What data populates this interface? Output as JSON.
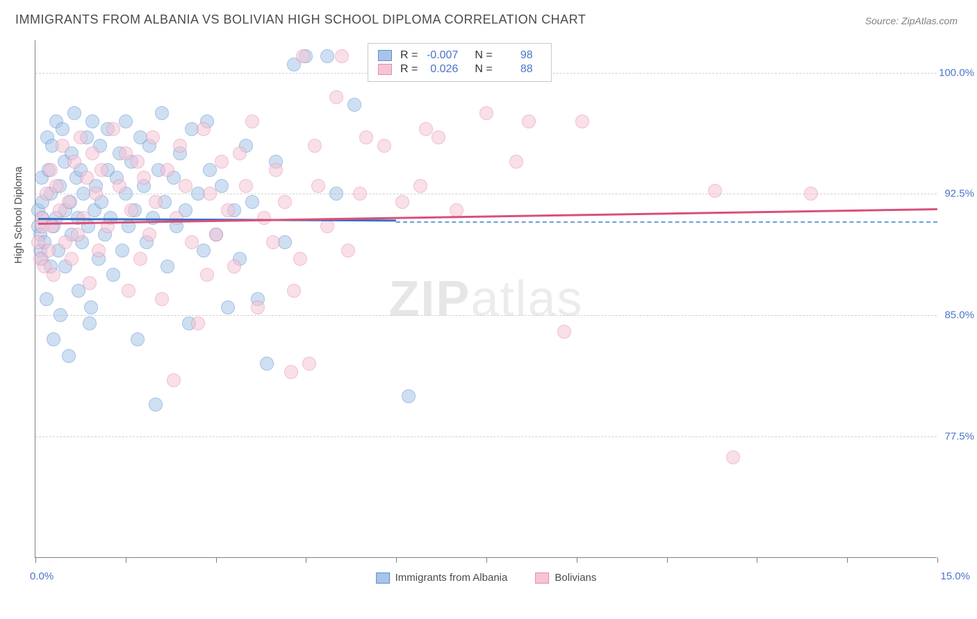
{
  "title": "IMMIGRANTS FROM ALBANIA VS BOLIVIAN HIGH SCHOOL DIPLOMA CORRELATION CHART",
  "source": "Source: ZipAtlas.com",
  "watermark_bold": "ZIP",
  "watermark_light": "atlas",
  "chart": {
    "type": "scatter",
    "xlim": [
      0,
      15
    ],
    "ylim": [
      70,
      102
    ],
    "x_axis_label_left": "0.0%",
    "x_axis_label_right": "15.0%",
    "y_axis_title": "High School Diploma",
    "y_ticks": [
      {
        "v": 77.5,
        "label": "77.5%"
      },
      {
        "v": 85.0,
        "label": "85.0%"
      },
      {
        "v": 92.5,
        "label": "92.5%"
      },
      {
        "v": 100.0,
        "label": "100.0%"
      }
    ],
    "x_tick_positions": [
      0,
      1.5,
      3.0,
      4.5,
      6.0,
      7.5,
      9.0,
      10.5,
      12.0,
      13.5,
      15.0
    ],
    "grid_color": "#d0d0d0",
    "background_color": "#ffffff",
    "marker_radius": 10,
    "marker_opacity": 0.55,
    "series": [
      {
        "name": "Immigrants from Albania",
        "fill": "#a8c5e8",
        "stroke": "#5a8fd0",
        "R": "-0.007",
        "N": "98",
        "trend": {
          "x1": 0.05,
          "y1": 91.0,
          "x2": 6.0,
          "y2": 90.9,
          "color": "#3a6fc0"
        },
        "dashed_ext": {
          "x1": 6.0,
          "x2": 15.0,
          "y": 90.8,
          "color": "#6a9fd8"
        },
        "points": [
          [
            0.05,
            90.5
          ],
          [
            0.05,
            91.5
          ],
          [
            0.08,
            89.0
          ],
          [
            0.08,
            90.0
          ],
          [
            0.1,
            93.5
          ],
          [
            0.1,
            88.5
          ],
          [
            0.12,
            92.0
          ],
          [
            0.12,
            91.0
          ],
          [
            0.15,
            89.5
          ],
          [
            0.18,
            86.0
          ],
          [
            0.2,
            96.0
          ],
          [
            0.22,
            94.0
          ],
          [
            0.25,
            92.5
          ],
          [
            0.25,
            88.0
          ],
          [
            0.28,
            95.5
          ],
          [
            0.3,
            83.5
          ],
          [
            0.3,
            90.5
          ],
          [
            0.35,
            97.0
          ],
          [
            0.35,
            91.0
          ],
          [
            0.38,
            89.0
          ],
          [
            0.4,
            93.0
          ],
          [
            0.42,
            85.0
          ],
          [
            0.45,
            96.5
          ],
          [
            0.48,
            94.5
          ],
          [
            0.5,
            91.5
          ],
          [
            0.5,
            88.0
          ],
          [
            0.55,
            82.5
          ],
          [
            0.58,
            92.0
          ],
          [
            0.6,
            95.0
          ],
          [
            0.6,
            90.0
          ],
          [
            0.65,
            97.5
          ],
          [
            0.68,
            93.5
          ],
          [
            0.7,
            91.0
          ],
          [
            0.72,
            86.5
          ],
          [
            0.75,
            94.0
          ],
          [
            0.78,
            89.5
          ],
          [
            0.8,
            92.5
          ],
          [
            0.85,
            96.0
          ],
          [
            0.88,
            90.5
          ],
          [
            0.9,
            84.5
          ],
          [
            0.92,
            85.5
          ],
          [
            0.95,
            97.0
          ],
          [
            0.98,
            91.5
          ],
          [
            1.0,
            93.0
          ],
          [
            1.05,
            88.5
          ],
          [
            1.08,
            95.5
          ],
          [
            1.1,
            92.0
          ],
          [
            1.15,
            90.0
          ],
          [
            1.2,
            96.5
          ],
          [
            1.2,
            94.0
          ],
          [
            1.25,
            91.0
          ],
          [
            1.3,
            87.5
          ],
          [
            1.35,
            93.5
          ],
          [
            1.4,
            95.0
          ],
          [
            1.45,
            89.0
          ],
          [
            1.5,
            92.5
          ],
          [
            1.5,
            97.0
          ],
          [
            1.55,
            90.5
          ],
          [
            1.6,
            94.5
          ],
          [
            1.65,
            91.5
          ],
          [
            1.7,
            83.5
          ],
          [
            1.75,
            96.0
          ],
          [
            1.8,
            93.0
          ],
          [
            1.85,
            89.5
          ],
          [
            1.9,
            95.5
          ],
          [
            1.95,
            91.0
          ],
          [
            2.0,
            79.5
          ],
          [
            2.05,
            94.0
          ],
          [
            2.1,
            97.5
          ],
          [
            2.15,
            92.0
          ],
          [
            2.2,
            88.0
          ],
          [
            2.3,
            93.5
          ],
          [
            2.35,
            90.5
          ],
          [
            2.4,
            95.0
          ],
          [
            2.5,
            91.5
          ],
          [
            2.55,
            84.5
          ],
          [
            2.6,
            96.5
          ],
          [
            2.7,
            92.5
          ],
          [
            2.8,
            89.0
          ],
          [
            2.85,
            97.0
          ],
          [
            2.9,
            94.0
          ],
          [
            3.0,
            90.0
          ],
          [
            3.1,
            93.0
          ],
          [
            3.2,
            85.5
          ],
          [
            3.3,
            91.5
          ],
          [
            3.4,
            88.5
          ],
          [
            3.5,
            95.5
          ],
          [
            3.6,
            92.0
          ],
          [
            3.7,
            86.0
          ],
          [
            3.85,
            82.0
          ],
          [
            4.0,
            94.5
          ],
          [
            4.15,
            89.5
          ],
          [
            4.3,
            100.5
          ],
          [
            4.5,
            101.0
          ],
          [
            4.85,
            101.0
          ],
          [
            5.0,
            92.5
          ],
          [
            5.3,
            98.0
          ],
          [
            6.2,
            80.0
          ]
        ]
      },
      {
        "name": "Bolivians",
        "fill": "#f5c5d5",
        "stroke": "#e88aa8",
        "R": "0.026",
        "N": "88",
        "trend": {
          "x1": 0.05,
          "y1": 90.7,
          "x2": 15.0,
          "y2": 91.6,
          "color": "#d8507a"
        },
        "points": [
          [
            0.05,
            89.5
          ],
          [
            0.08,
            88.5
          ],
          [
            0.1,
            91.0
          ],
          [
            0.12,
            90.5
          ],
          [
            0.15,
            88.0
          ],
          [
            0.18,
            92.5
          ],
          [
            0.22,
            89.0
          ],
          [
            0.25,
            94.0
          ],
          [
            0.28,
            90.5
          ],
          [
            0.3,
            87.5
          ],
          [
            0.35,
            93.0
          ],
          [
            0.4,
            91.5
          ],
          [
            0.45,
            95.5
          ],
          [
            0.5,
            89.5
          ],
          [
            0.55,
            92.0
          ],
          [
            0.6,
            88.5
          ],
          [
            0.65,
            94.5
          ],
          [
            0.7,
            90.0
          ],
          [
            0.75,
            96.0
          ],
          [
            0.8,
            91.0
          ],
          [
            0.85,
            93.5
          ],
          [
            0.9,
            87.0
          ],
          [
            0.95,
            95.0
          ],
          [
            1.0,
            92.5
          ],
          [
            1.05,
            89.0
          ],
          [
            1.1,
            94.0
          ],
          [
            1.2,
            90.5
          ],
          [
            1.3,
            96.5
          ],
          [
            1.4,
            93.0
          ],
          [
            1.5,
            95.0
          ],
          [
            1.55,
            86.5
          ],
          [
            1.6,
            91.5
          ],
          [
            1.7,
            94.5
          ],
          [
            1.75,
            88.5
          ],
          [
            1.8,
            93.5
          ],
          [
            1.9,
            90.0
          ],
          [
            1.95,
            96.0
          ],
          [
            2.0,
            92.0
          ],
          [
            2.1,
            86.0
          ],
          [
            2.2,
            94.0
          ],
          [
            2.3,
            81.0
          ],
          [
            2.35,
            91.0
          ],
          [
            2.4,
            95.5
          ],
          [
            2.5,
            93.0
          ],
          [
            2.6,
            89.5
          ],
          [
            2.7,
            84.5
          ],
          [
            2.8,
            96.5
          ],
          [
            2.85,
            87.5
          ],
          [
            2.9,
            92.5
          ],
          [
            3.0,
            90.0
          ],
          [
            3.1,
            94.5
          ],
          [
            3.2,
            91.5
          ],
          [
            3.3,
            88.0
          ],
          [
            3.4,
            95.0
          ],
          [
            3.5,
            93.0
          ],
          [
            3.6,
            97.0
          ],
          [
            3.7,
            85.5
          ],
          [
            3.8,
            91.0
          ],
          [
            3.95,
            89.5
          ],
          [
            4.0,
            94.0
          ],
          [
            4.15,
            92.0
          ],
          [
            4.25,
            81.5
          ],
          [
            4.3,
            86.5
          ],
          [
            4.4,
            88.5
          ],
          [
            4.45,
            101.0
          ],
          [
            4.55,
            82.0
          ],
          [
            4.65,
            95.5
          ],
          [
            4.7,
            93.0
          ],
          [
            4.85,
            90.5
          ],
          [
            5.0,
            98.5
          ],
          [
            5.1,
            101.0
          ],
          [
            5.2,
            89.0
          ],
          [
            5.4,
            92.5
          ],
          [
            5.5,
            96.0
          ],
          [
            5.8,
            95.5
          ],
          [
            6.1,
            92.0
          ],
          [
            6.4,
            93.0
          ],
          [
            6.5,
            96.5
          ],
          [
            6.7,
            96.0
          ],
          [
            7.0,
            91.5
          ],
          [
            7.5,
            97.5
          ],
          [
            8.0,
            94.5
          ],
          [
            8.2,
            97.0
          ],
          [
            8.8,
            84.0
          ],
          [
            9.1,
            97.0
          ],
          [
            11.3,
            92.7
          ],
          [
            11.6,
            76.2
          ],
          [
            12.9,
            92.5
          ]
        ]
      }
    ]
  }
}
